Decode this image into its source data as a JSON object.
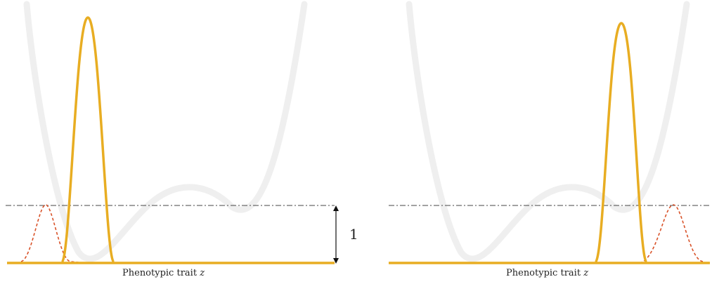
{
  "panels": [
    {
      "name": "left",
      "x_label": "Phenotypic trait ",
      "x_label_var": "z",
      "peak_label": "1"
    },
    {
      "name": "right",
      "x_label": "Phenotypic trait ",
      "x_label_var": "z"
    }
  ],
  "colors": {
    "landscape": "#efefef",
    "distribution": "#e8ad22",
    "offspring": "#d9532a",
    "reference_line": "#444444",
    "baseline": "#e8ad22"
  }
}
